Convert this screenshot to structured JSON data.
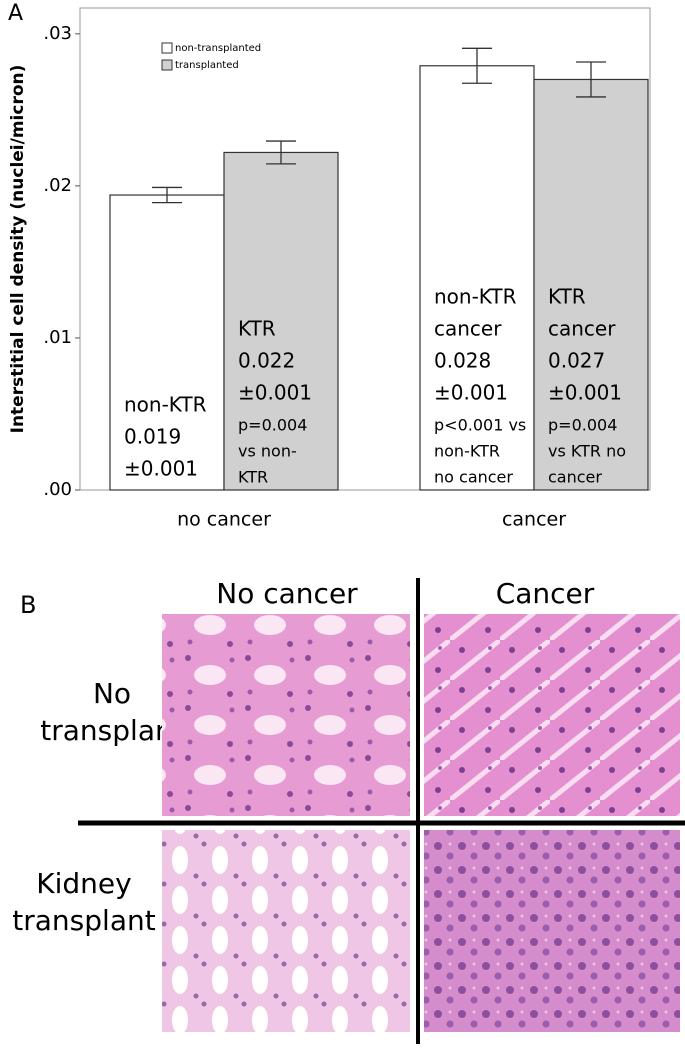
{
  "panel_labels": [
    "A",
    "B"
  ],
  "chart_data": {
    "type": "bar",
    "ylabel": "Interstitial cell density (nuclei/micron)",
    "categories": [
      "no cancer",
      "cancer"
    ],
    "series": [
      {
        "name": "non-transplanted",
        "color": "#ffffff",
        "values": [
          0.0194,
          0.0279
        ],
        "errors": [
          0.0005,
          0.00115
        ],
        "labels": [
          {
            "main": [
              "non-KTR",
              "0.019",
              "±0.001"
            ],
            "note": []
          },
          {
            "main": [
              "non-KTR",
              "cancer",
              "0.028",
              "±0.001"
            ],
            "note": [
              "p<0.001 vs",
              "non-KTR",
              "no cancer"
            ]
          }
        ]
      },
      {
        "name": "transplanted",
        "color": "#d0d0d0",
        "values": [
          0.0222,
          0.027
        ],
        "errors": [
          0.00075,
          0.00115
        ],
        "labels": [
          {
            "main": [
              "KTR",
              "0.022",
              "±0.001"
            ],
            "note": [
              "p=0.004",
              "vs non-",
              "KTR"
            ]
          },
          {
            "main": [
              "KTR",
              "cancer",
              "0.027",
              "±0.001"
            ],
            "note": [
              "p=0.004",
              "vs KTR no",
              "cancer"
            ]
          }
        ]
      }
    ],
    "ylim": [
      0,
      0.0317
    ],
    "yticks": [
      {
        "value": 0,
        "label": ".00"
      },
      {
        "value": 0.01,
        "label": ".01"
      },
      {
        "value": 0.02,
        "label": ".02"
      },
      {
        "value": 0.03,
        "label": ".03"
      }
    ],
    "legend": "upper-left"
  },
  "image_grid": {
    "columns": [
      "No cancer",
      "Cancer"
    ],
    "rows": [
      [
        "No",
        "transplant"
      ],
      [
        "Kidney",
        "transplant"
      ]
    ]
  }
}
